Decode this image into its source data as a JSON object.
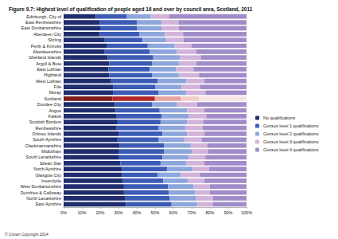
{
  "chart_data": {
    "type": "bar",
    "title": "Figure 9.7: Highest level of qualification of people aged 16 and over by council area, Scotland, 2011",
    "annotations": [
      "© Crown Copyright 2014"
    ],
    "orientation": "horizontal",
    "stacked": true,
    "grid": false,
    "legend": "right",
    "data_labels": false,
    "categories": [
      "Edinburgh, City of",
      "East Renfrewshire",
      "East Dunbartonshire",
      "Aberdeen City",
      "Stirling",
      "Perth & Kinross",
      "Aberdeenshire",
      "Shetland Islands",
      "Argyll & Bute",
      "East Lothian",
      "Highland",
      "West Lothian",
      "Fife",
      "Moray",
      "Scotland",
      "Dundee City",
      "Angus",
      "Falkirk",
      "Scottish Borders",
      "Renfrewshire",
      "Orkney Islands",
      "South Ayrshire",
      "Clackmannanshire",
      "Midlothian",
      "South Lanarkshire",
      "Eilean Siar",
      "North Ayrshire",
      "Glasgow City",
      "Inverclyde",
      "West Dunbartonshire",
      "Dumfries & Galloway",
      "North Lanarkshire",
      "East Ayrshire"
    ],
    "xlim": [
      0,
      100
    ],
    "xticks": [
      {
        "value": 0,
        "label": "0%"
      },
      {
        "value": 10,
        "label": "10%"
      },
      {
        "value": 20,
        "label": "20%"
      },
      {
        "value": 30,
        "label": "30%"
      },
      {
        "value": 40,
        "label": "40%"
      },
      {
        "value": 50,
        "label": "50%"
      },
      {
        "value": 60,
        "label": "60%"
      },
      {
        "value": 70,
        "label": "70%"
      },
      {
        "value": 80,
        "label": "80%"
      },
      {
        "value": 90,
        "label": "90%"
      },
      {
        "value": 100,
        "label": "100%"
      }
    ],
    "series": [
      {
        "name": "No qualifications",
        "color": "#1f2d6e",
        "values": [
          17.6,
          19.6,
          20.0,
          19.8,
          22.5,
          23.5,
          22.5,
          24.0,
          25.0,
          24.5,
          25.0,
          26.0,
          27.0,
          27.0,
          26.8,
          28.0,
          28.5,
          29.0,
          29.5,
          29.0,
          30.0,
          29.5,
          30.5,
          30.0,
          30.0,
          31.0,
          32.0,
          32.0,
          32.5,
          33.0,
          33.0,
          33.5,
          34.0
        ],
        "colors": [
          "#1f2d6e",
          "#1f2d6e",
          "#1f2d6e",
          "#1f2d6e",
          "#1f2d6e",
          "#1f2d6e",
          "#1f2d6e",
          "#1f2d6e",
          "#1f2d6e",
          "#1f2d6e",
          "#1f2d6e",
          "#1f2d6e",
          "#1f2d6e",
          "#1f2d6e",
          "#7b1b1b",
          "#1f2d6e",
          "#1f2d6e",
          "#1f2d6e",
          "#1f2d6e",
          "#1f2d6e",
          "#1f2d6e",
          "#1f2d6e",
          "#1f2d6e",
          "#1f2d6e",
          "#1f2d6e",
          "#1f2d6e",
          "#1f2d6e",
          "#1f2d6e",
          "#1f2d6e",
          "#1f2d6e",
          "#1f2d6e",
          "#1f2d6e",
          "#1f2d6e"
        ]
      },
      {
        "name": "Census level 1 qualifications",
        "color": "#3b5bb5",
        "values": [
          17.0,
          20.5,
          20.0,
          21.5,
          20.5,
          22.5,
          24.5,
          25.0,
          23.5,
          22.5,
          23.5,
          25.5,
          23.0,
          25.0,
          23.1,
          20.5,
          24.0,
          24.5,
          23.5,
          23.0,
          24.0,
          22.5,
          24.5,
          25.0,
          24.0,
          22.0,
          24.5,
          19.5,
          22.0,
          24.0,
          24.5,
          24.5,
          25.0
        ],
        "colors": [
          "#3b5bb5",
          "#3b5bb5",
          "#3b5bb5",
          "#3b5bb5",
          "#3b5bb5",
          "#3b5bb5",
          "#3b5bb5",
          "#3b5bb5",
          "#3b5bb5",
          "#3b5bb5",
          "#3b5bb5",
          "#3b5bb5",
          "#3b5bb5",
          "#3b5bb5",
          "#b02a2a",
          "#3b5bb5",
          "#3b5bb5",
          "#3b5bb5",
          "#3b5bb5",
          "#3b5bb5",
          "#3b5bb5",
          "#3b5bb5",
          "#3b5bb5",
          "#3b5bb5",
          "#3b5bb5",
          "#3b5bb5",
          "#3b5bb5",
          "#3b5bb5",
          "#3b5bb5",
          "#3b5bb5",
          "#3b5bb5",
          "#3b5bb5",
          "#3b5bb5"
        ]
      },
      {
        "name": "Census level 2 qualifications",
        "color": "#8da6dc",
        "values": [
          13.0,
          13.5,
          13.5,
          14.0,
          13.3,
          14.7,
          15.0,
          14.5,
          14.5,
          14.5,
          14.5,
          15.5,
          14.5,
          15.0,
          14.3,
          13.5,
          15.0,
          15.0,
          14.5,
          14.5,
          13.5,
          14.0,
          14.5,
          15.0,
          14.5,
          14.0,
          14.0,
          12.5,
          13.5,
          14.0,
          14.5,
          14.5,
          14.0
        ],
        "colors": [
          "#8da6dc",
          "#8da6dc",
          "#8da6dc",
          "#8da6dc",
          "#8da6dc",
          "#8da6dc",
          "#8da6dc",
          "#8da6dc",
          "#8da6dc",
          "#8da6dc",
          "#8da6dc",
          "#8da6dc",
          "#8da6dc",
          "#8da6dc",
          "#e9a3a3",
          "#8da6dc",
          "#8da6dc",
          "#8da6dc",
          "#8da6dc",
          "#8da6dc",
          "#8da6dc",
          "#8da6dc",
          "#8da6dc",
          "#8da6dc",
          "#8da6dc",
          "#8da6dc",
          "#8da6dc",
          "#8da6dc",
          "#8da6dc",
          "#8da6dc",
          "#8da6dc",
          "#8da6dc",
          "#8da6dc"
        ]
      },
      {
        "name": "Census level 3 qualifications",
        "color": "#d3b3da",
        "values": [
          10.0,
          9.2,
          9.5,
          10.0,
          9.2,
          9.3,
          10.5,
          11.5,
          9.5,
          9.5,
          11.0,
          10.0,
          10.0,
          10.5,
          9.7,
          11.0,
          9.5,
          9.5,
          9.0,
          9.5,
          9.5,
          9.5,
          9.0,
          9.0,
          9.0,
          10.0,
          9.0,
          10.5,
          9.0,
          9.0,
          8.0,
          9.0,
          8.5
        ],
        "colors": [
          "#d3b3da",
          "#d3b3da",
          "#d3b3da",
          "#d3b3da",
          "#d3b3da",
          "#d3b3da",
          "#d3b3da",
          "#d3b3da",
          "#d3b3da",
          "#d3b3da",
          "#d3b3da",
          "#d3b3da",
          "#d3b3da",
          "#d3b3da",
          "#f3cccc",
          "#d3b3da",
          "#d3b3da",
          "#d3b3da",
          "#d3b3da",
          "#d3b3da",
          "#d3b3da",
          "#d3b3da",
          "#d3b3da",
          "#d3b3da",
          "#d3b3da",
          "#d3b3da",
          "#d3b3da",
          "#d3b3da",
          "#d3b3da",
          "#d3b3da",
          "#d3b3da",
          "#d3b3da",
          "#d3b3da"
        ]
      },
      {
        "name": "Census level 4 qualifications",
        "color": "#a08cc8",
        "values": [
          42.4,
          37.2,
          37.0,
          34.7,
          34.5,
          30.0,
          27.5,
          25.0,
          27.5,
          29.0,
          26.0,
          23.0,
          25.5,
          22.5,
          26.1,
          27.0,
          23.0,
          22.0,
          23.5,
          24.0,
          23.0,
          24.5,
          21.5,
          21.0,
          22.5,
          23.0,
          20.5,
          25.5,
          23.0,
          20.0,
          20.0,
          18.5,
          18.5
        ],
        "colors": [
          "#a08cc8",
          "#a08cc8",
          "#a08cc8",
          "#a08cc8",
          "#a08cc8",
          "#a08cc8",
          "#a08cc8",
          "#a08cc8",
          "#a08cc8",
          "#a08cc8",
          "#a08cc8",
          "#a08cc8",
          "#a08cc8",
          "#a08cc8",
          "#f8e1e1",
          "#a08cc8",
          "#a08cc8",
          "#a08cc8",
          "#a08cc8",
          "#a08cc8",
          "#a08cc8",
          "#a08cc8",
          "#a08cc8",
          "#a08cc8",
          "#a08cc8",
          "#a08cc8",
          "#a08cc8",
          "#a08cc8",
          "#a08cc8",
          "#a08cc8",
          "#a08cc8",
          "#a08cc8",
          "#a08cc8"
        ]
      }
    ]
  }
}
